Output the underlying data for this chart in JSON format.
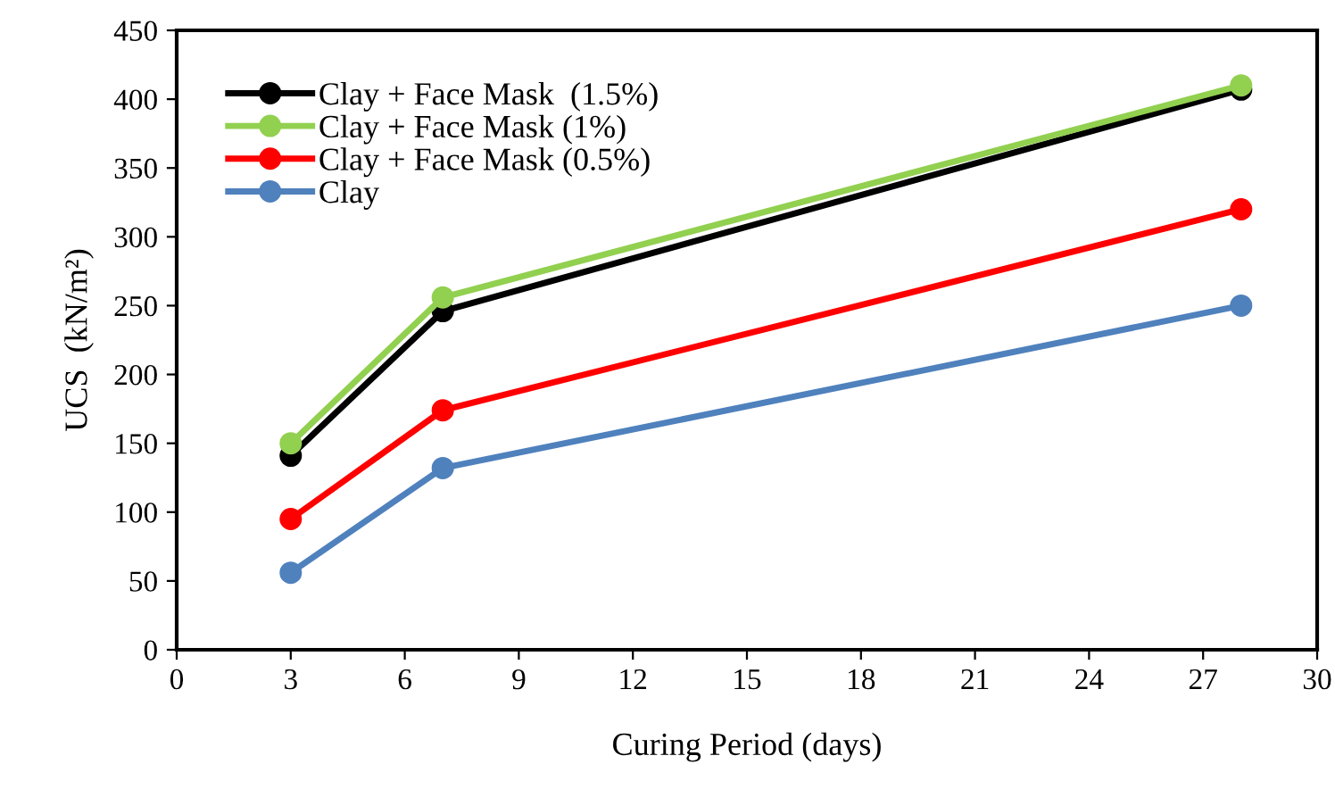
{
  "chart_data": {
    "type": "line",
    "xlabel": "Curing Period (days)",
    "ylabel": "UCS  (kN/m²)",
    "x": [
      3,
      7,
      28
    ],
    "series": [
      {
        "name": "Clay + Face Mask  (1.5%)",
        "color": "#000000",
        "values": [
          141,
          246,
          407
        ]
      },
      {
        "name": "Clay + Face Mask (1%)",
        "color": "#92d050",
        "values": [
          150,
          256,
          410
        ]
      },
      {
        "name": "Clay + Face Mask (0.5%)",
        "color": "#ff0000",
        "values": [
          95,
          174,
          320
        ]
      },
      {
        "name": "Clay",
        "color": "#4f81bd",
        "values": [
          56,
          132,
          250
        ]
      }
    ],
    "xlim": [
      0,
      30
    ],
    "xticks": [
      0,
      3,
      6,
      9,
      12,
      15,
      18,
      21,
      24,
      27,
      30
    ],
    "ylim": [
      0,
      450
    ],
    "yticks": [
      0,
      50,
      100,
      150,
      200,
      250,
      300,
      350,
      400,
      450
    ],
    "marker": "circle",
    "line_style": "solid",
    "legend": "top left",
    "grid": false
  }
}
